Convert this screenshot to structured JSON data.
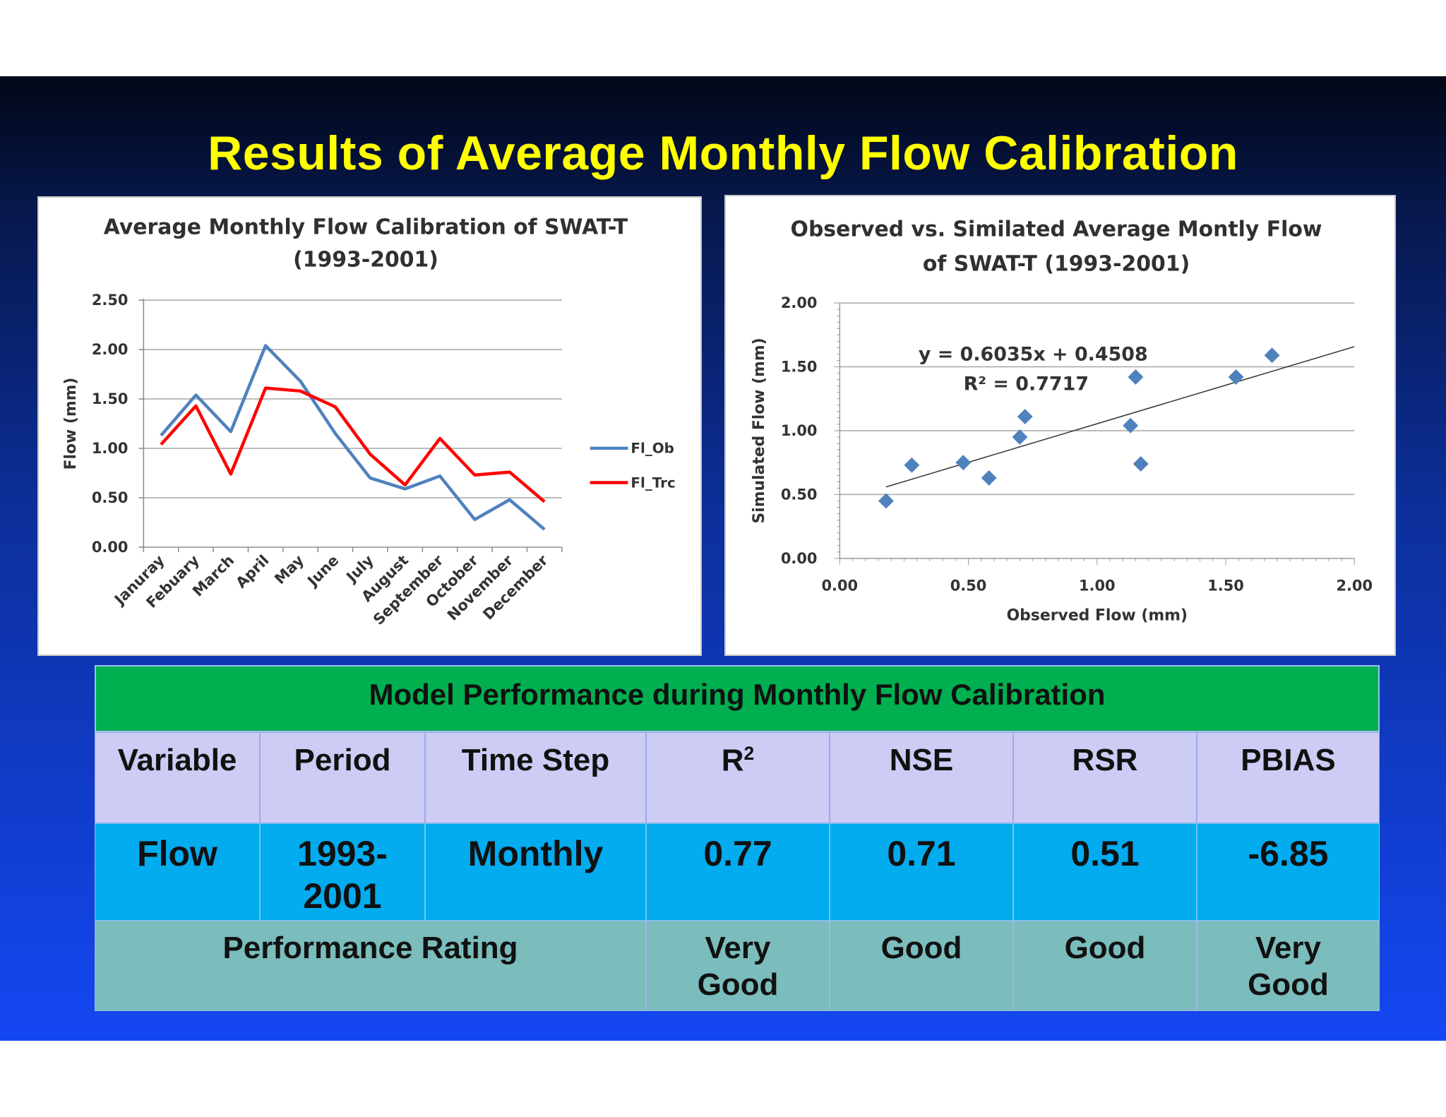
{
  "slide": {
    "title": "Results of Average Monthly Flow Calibration"
  },
  "chart_data": [
    {
      "type": "line",
      "title": [
        "Average Monthly Flow Calibration of SWAT-T",
        "(1993-2001)"
      ],
      "ylabel": "Flow (mm)",
      "xlabel": "",
      "ylim": [
        0,
        2.5
      ],
      "yticks": [
        "0.00",
        "0.50",
        "1.00",
        "1.50",
        "2.00",
        "2.50"
      ],
      "grid": true,
      "legend": "right",
      "categories": [
        "Januray",
        "Febuary",
        "March",
        "April",
        "May",
        "June",
        "July",
        "August",
        "September",
        "October",
        "November",
        "December"
      ],
      "series": [
        {
          "name": "Fl_Ob",
          "color": "#4f81bd",
          "values": [
            1.13,
            1.54,
            1.17,
            2.04,
            1.68,
            1.15,
            0.7,
            0.59,
            0.72,
            0.28,
            0.48,
            0.18
          ]
        },
        {
          "name": "Fl_Trc",
          "color": "#ff0000",
          "values": [
            1.04,
            1.43,
            0.74,
            1.61,
            1.58,
            1.42,
            0.94,
            0.63,
            1.1,
            0.73,
            0.76,
            0.46
          ]
        }
      ]
    },
    {
      "type": "scatter",
      "title": [
        "Observed vs. Similated Average Montly Flow",
        "of SWAT-T   (1993-2001)"
      ],
      "xlabel": "Observed Flow (mm)",
      "ylabel": "Simulated Flow (mm)",
      "xlim": [
        0,
        2
      ],
      "ylim": [
        0,
        2
      ],
      "xticks": [
        "0.00",
        "0.50",
        "1.00",
        "1.50",
        "2.00"
      ],
      "yticks": [
        "0.00",
        "0.50",
        "1.00",
        "1.50",
        "2.00"
      ],
      "grid": true,
      "marker_color": "#4f81bd",
      "points": [
        {
          "x": 0.18,
          "y": 0.45
        },
        {
          "x": 0.28,
          "y": 0.73
        },
        {
          "x": 0.48,
          "y": 0.75
        },
        {
          "x": 0.58,
          "y": 0.63
        },
        {
          "x": 0.7,
          "y": 0.95
        },
        {
          "x": 0.72,
          "y": 1.11
        },
        {
          "x": 1.13,
          "y": 1.04
        },
        {
          "x": 1.15,
          "y": 1.42
        },
        {
          "x": 1.17,
          "y": 0.74
        },
        {
          "x": 1.54,
          "y": 1.42
        },
        {
          "x": 1.68,
          "y": 1.59
        }
      ],
      "trendline": {
        "slope": 0.6035,
        "intercept": 0.4508,
        "x_range": [
          0.18,
          2.0
        ]
      },
      "equation": "y = 0.6035x + 0.4508",
      "r_squared": "R² = 0.7717"
    }
  ],
  "table": {
    "title": "Model Performance during Monthly Flow Calibration",
    "headers": [
      "Variable",
      "Period",
      "Time Step",
      "R",
      "NSE",
      "RSR",
      "PBIAS"
    ],
    "r_superscript": "2",
    "row": {
      "variable": "Flow",
      "period_line1": "1993-",
      "period_line2": "2001",
      "time_step": "Monthly",
      "r2": "0.77",
      "nse": "0.71",
      "rsr": "0.51",
      "pbias": "-6.85"
    },
    "rating": {
      "label": "Performance Rating",
      "r2_line1": "Very",
      "r2_line2": "Good",
      "nse": "Good",
      "rsr": "Good",
      "pbias_line1": "Very",
      "pbias_line2": "Good"
    }
  }
}
